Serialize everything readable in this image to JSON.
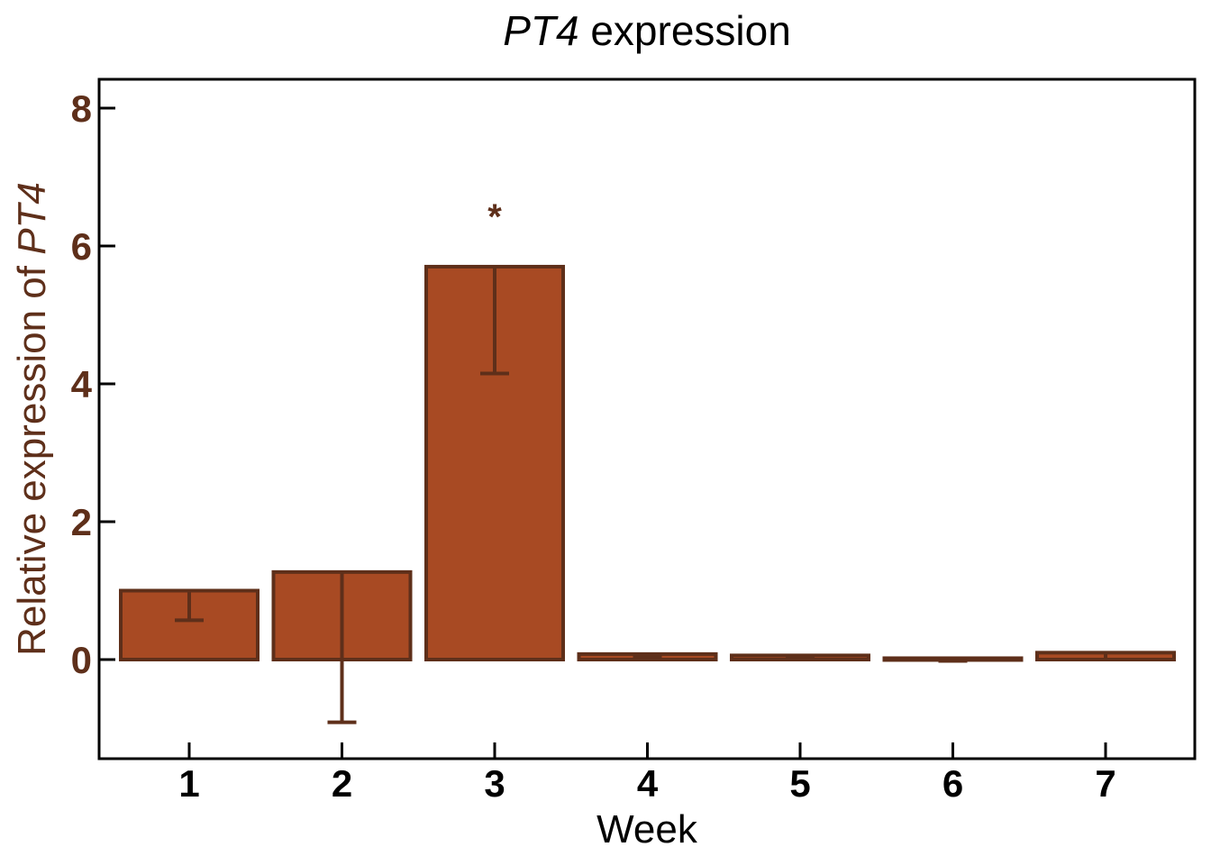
{
  "chart_data": {
    "type": "bar",
    "title_gene": "PT4",
    "title_rest": " expression",
    "xlabel": "Week",
    "ylabel_prefix": "Relative expression of ",
    "ylabel_gene": "PT4",
    "categories": [
      "1",
      "2",
      "3",
      "4",
      "5",
      "6",
      "7"
    ],
    "values": [
      1.0,
      1.27,
      5.7,
      0.08,
      0.06,
      0.02,
      0.1
    ],
    "error_low": [
      0.57,
      -0.91,
      4.15,
      0.05,
      0.04,
      -0.02,
      0.0
    ],
    "error_high": [
      1.0,
      1.27,
      5.7,
      0.08,
      0.06,
      0.02,
      0.1
    ],
    "annotations": [
      {
        "category": "3",
        "text": "*"
      }
    ],
    "yticks": [
      0,
      2,
      4,
      6,
      8
    ],
    "ylim": [
      -1.45,
      8.45
    ],
    "bar_fill": "#a84a23",
    "bar_edge": "#5e2f1a",
    "axis_text_color": "#5e2f1a"
  }
}
